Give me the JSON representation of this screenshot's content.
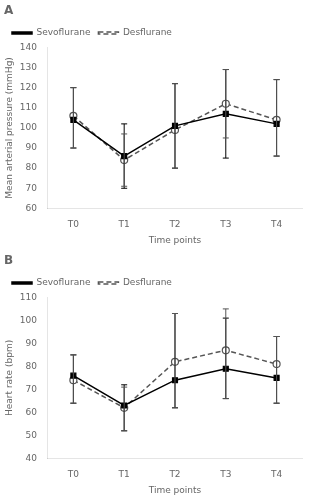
{
  "chart_data": [
    {
      "type": "line",
      "annotation": "A",
      "categories": [
        "T0",
        "T1",
        "T2",
        "T3",
        "T4"
      ],
      "x_label": "Time points",
      "y_label": "Mean arterial pressure (mmHg)",
      "ylim": [
        60,
        140
      ],
      "yticks": [
        60,
        70,
        80,
        90,
        100,
        110,
        120,
        130,
        140
      ],
      "grid": false,
      "legend": "upper left",
      "series": [
        {
          "name": "Sevoflurane",
          "color": "#000000",
          "marker": "square",
          "line_style": "solid",
          "values": [
            104,
            86,
            101,
            107,
            102
          ],
          "error_upper": [
            16,
            16,
            21,
            22,
            22
          ],
          "error_lower": [
            14,
            16,
            21,
            22,
            16
          ]
        },
        {
          "name": "Desflurane",
          "color": "#555555",
          "marker": "open_circle",
          "line_style": "dashed",
          "values": [
            106,
            84,
            99,
            112,
            104
          ],
          "error_upper": [
            14,
            13,
            23,
            17,
            20
          ],
          "error_lower": [
            16,
            13,
            19,
            17,
            18
          ]
        }
      ]
    },
    {
      "type": "line",
      "annotation": "B",
      "categories": [
        "T0",
        "T1",
        "T2",
        "T3",
        "T4"
      ],
      "x_label": "Time points",
      "y_label": "Heart rate (bpm)",
      "ylim": [
        40,
        110
      ],
      "yticks": [
        40,
        50,
        60,
        70,
        80,
        90,
        100,
        110
      ],
      "grid": false,
      "legend": "upper left",
      "series": [
        {
          "name": "Sevoflurane",
          "color": "#000000",
          "marker": "square",
          "line_style": "solid",
          "values": [
            76,
            63,
            74,
            79,
            75
          ],
          "error_upper": [
            9,
            9,
            29,
            22,
            18
          ],
          "error_lower": [
            12,
            11,
            12,
            13,
            11
          ]
        },
        {
          "name": "Desflurane",
          "color": "#555555",
          "marker": "open_circle",
          "line_style": "dashed",
          "values": [
            74,
            62,
            82,
            87,
            81
          ],
          "error_upper": [
            11,
            9,
            21,
            18,
            12
          ],
          "error_lower": [
            10,
            10,
            20,
            21,
            17
          ]
        }
      ]
    }
  ]
}
